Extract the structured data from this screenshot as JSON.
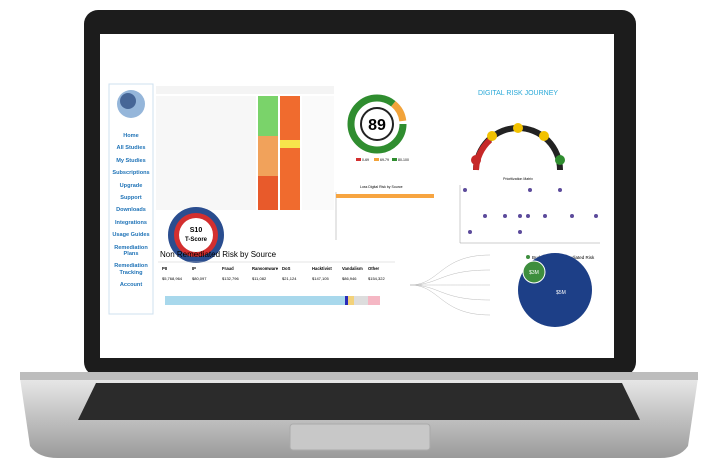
{
  "sidebar": {
    "menu": [
      "Home",
      "All Studies",
      "My Studies",
      "Subscriptions",
      "Upgrade",
      "Support",
      "Downloads",
      "Integrations",
      "Usage Guides",
      "Remediation Plans",
      "Remediation Tracking",
      "Account"
    ]
  },
  "gauge": {
    "score": "89",
    "legend": [
      "0-69",
      "69-79",
      "80-100"
    ]
  },
  "tscore": {
    "label": "S10",
    "sub": "T-Score"
  },
  "journey": {
    "title": "DIGITAL RISK JOURNEY"
  },
  "loss_chart": {
    "title": "Loss Digital Risk by Source"
  },
  "matrix": {
    "title": "Prioritization Matrix"
  },
  "risk_table": {
    "title": "Non Remediated Risk by Source",
    "headers": [
      "PII",
      "IP",
      "Fraud",
      "Ransomware",
      "DoS",
      "Hacktivist",
      "Vandalism",
      "Other"
    ],
    "values": [
      "$5,768,964",
      "$80,097",
      "$132,796",
      "$11,082",
      "$21,124",
      "$147,105",
      "$86,946",
      "$154,322"
    ]
  },
  "budget": {
    "legend": [
      "Budget",
      "Remediated Risk"
    ],
    "labels": [
      "$3M",
      "$5M"
    ]
  }
}
